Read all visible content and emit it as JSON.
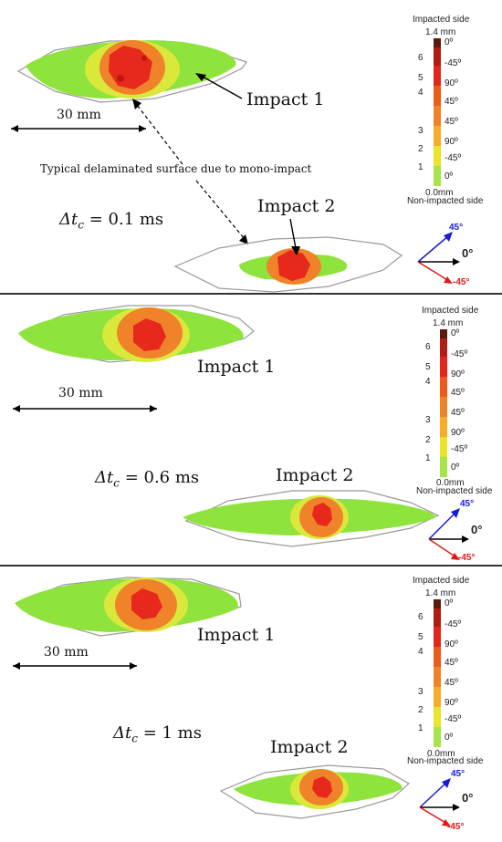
{
  "panels": [
    {
      "dt_symbol": "Δt",
      "dt_sub": "c",
      "dt_value": "= 0.1 ms",
      "impact1": "Impact 1",
      "impact2": "Impact 2",
      "scale": "30 mm",
      "annotation": "Typical delaminated surface due to mono-impact"
    },
    {
      "dt_symbol": "Δt",
      "dt_sub": "c",
      "dt_value": "= 0.6 ms",
      "impact1": "Impact 1",
      "impact2": "Impact 2",
      "scale": "30 mm"
    },
    {
      "dt_symbol": "Δt",
      "dt_sub": "c",
      "dt_value": "= 1 ms",
      "impact1": "Impact 1",
      "impact2": "Impact 2",
      "scale": "30 mm"
    }
  ],
  "legend": {
    "top_label": "Impacted side",
    "bottom_label": "Non-impacted side",
    "max": "1.4 mm",
    "min": "0.0mm",
    "interfaces": [
      "6",
      "5",
      "4",
      "3",
      "2",
      "1"
    ],
    "plies": [
      "0º",
      "-45º",
      "90º",
      "45º",
      "45º",
      "90º",
      "-45º",
      "0º"
    ],
    "colors": [
      "#5a1a0e",
      "#b11d12",
      "#e4261a",
      "#ee5a19",
      "#f0832a",
      "#f7ad2a",
      "#e9e52a",
      "#a9e34a",
      "#79dc2f"
    ]
  },
  "orientation": {
    "a45": "45°",
    "a0": "0°",
    "am45": "-45°",
    "color45": "#1a1ad6",
    "color0": "#000000",
    "colorm45": "#e01a1a"
  },
  "damage_colors": {
    "green": "#8ee33c",
    "yellow": "#d9e83a",
    "orange": "#f0822a",
    "red": "#e7281c",
    "outline": "#9a9a9a"
  }
}
